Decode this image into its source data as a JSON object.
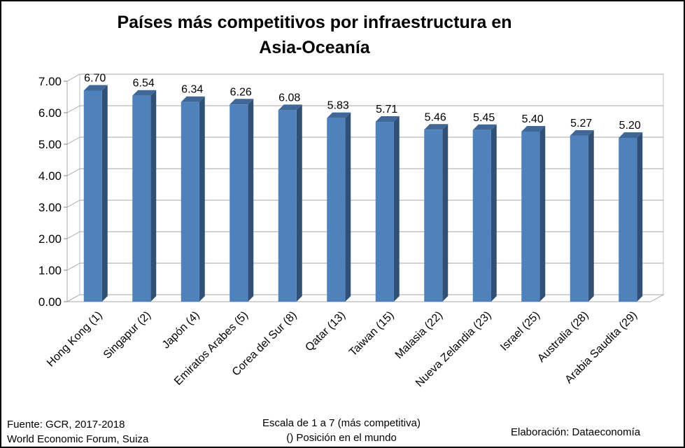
{
  "chart_data": {
    "type": "bar",
    "title_line1": "Países más competitivos por infraestructura en",
    "title_line2": "Asia-Oceanía",
    "categories": [
      "Hong Kong (1)",
      "Singapur (2)",
      "Japón (4)",
      "Emiratos Arabes (5)",
      "Corea del Sur (8)",
      "Qatar (13)",
      "Taiwan (15)",
      "Malasia (22)",
      "Nueva Zelandia (23)",
      "Israel (25)",
      "Australia (28)",
      "Arabia Saudita (29)"
    ],
    "values": [
      6.7,
      6.54,
      6.34,
      6.26,
      6.08,
      5.83,
      5.71,
      5.46,
      5.45,
      5.4,
      5.27,
      5.2
    ],
    "value_labels": [
      "6.70",
      "6.54",
      "6.34",
      "6.26",
      "6.08",
      "5.83",
      "5.71",
      "5.46",
      "5.45",
      "5.40",
      "5.27",
      "5.20"
    ],
    "y_ticks": [
      "0.00",
      "1.00",
      "2.00",
      "3.00",
      "4.00",
      "5.00",
      "6.00",
      "7.00"
    ],
    "ylim": [
      0,
      7
    ],
    "grid": true,
    "legend": "none",
    "bar_color": "#4F81BD"
  },
  "footer": {
    "source_line1": "Fuente:  GCR, 2017-2018",
    "source_line2": "World Economic Forum, Suiza",
    "scale_line1": "Escala de 1 a 7 (más competitiva)",
    "scale_line2": "() Posición en el mundo",
    "credit": "Elaboración: Dataeconomía"
  }
}
